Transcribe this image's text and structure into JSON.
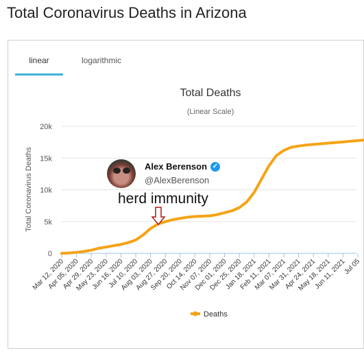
{
  "page": {
    "title": "Total Coronavirus Deaths in Arizona"
  },
  "tabs": [
    {
      "label": "linear",
      "active": true
    },
    {
      "label": "logarithmic",
      "active": false
    }
  ],
  "tweet": {
    "name": "Alex Berenson",
    "handle": "@AlexBerenson",
    "verified": true
  },
  "annotation": {
    "text": "herd immunity",
    "date_index": 6.15
  },
  "colors": {
    "series": "#f5a315",
    "tab_accent": "#3fb3d9",
    "verified": "#1d9bf0",
    "arrow": "#b01515"
  },
  "chart_data": {
    "type": "line",
    "title": "Total Deaths",
    "subtitle": "(Linear Scale)",
    "ylabel": "Total Coronavirus Deaths",
    "xlabel": "",
    "ylim": [
      0,
      20000
    ],
    "yticks": [
      0,
      5000,
      10000,
      15000,
      20000
    ],
    "ytick_labels": [
      "0",
      "5k",
      "10k",
      "15k",
      "20k"
    ],
    "categories": [
      "Mar 12, 2020",
      "Apr 05, 2020",
      "Apr 29, 2020",
      "May 23, 2020",
      "Jun 16, 2020",
      "Jul 10, 2020",
      "Aug 03, 2020",
      "Aug 27, 2020",
      "Sep 20, 2020",
      "Oct 14, 2020",
      "Nov 07, 2020",
      "Dec 01, 2020",
      "Dec 25, 2020",
      "Jan 18, 2021",
      "Feb 11, 2021",
      "Mar 07, 2021",
      "Mar 31, 2021",
      "Apr 24, 2021",
      "May 18, 2021",
      "Jun 11, 2021",
      "Jul 05"
    ],
    "grid": true,
    "legend": "bottom",
    "series": [
      {
        "name": "Deaths",
        "x": [
          0,
          0.5,
          1,
          1.5,
          2,
          2.5,
          3,
          3.5,
          4,
          4.5,
          5,
          5.5,
          6,
          6.5,
          7,
          7.5,
          8,
          8.5,
          9,
          9.5,
          10,
          10.5,
          11,
          11.5,
          12,
          12.5,
          13,
          13.5,
          14,
          14.5,
          15,
          15.5,
          16,
          16.5,
          17,
          17.5,
          18,
          18.5,
          19,
          19.5,
          20,
          20.5
        ],
        "y": [
          0,
          50,
          150,
          300,
          500,
          800,
          1000,
          1200,
          1400,
          1700,
          2100,
          2900,
          3900,
          4600,
          5000,
          5300,
          5500,
          5700,
          5800,
          5850,
          5900,
          6100,
          6400,
          6700,
          7200,
          8100,
          9600,
          11700,
          13800,
          15400,
          16200,
          16700,
          16900,
          17050,
          17150,
          17250,
          17350,
          17450,
          17550,
          17650,
          17750,
          17850
        ]
      }
    ]
  }
}
